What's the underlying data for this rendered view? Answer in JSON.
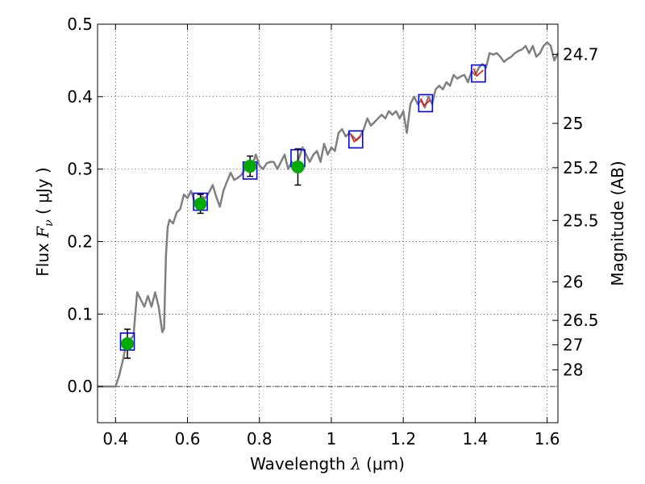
{
  "chart_data": {
    "type": "line",
    "xlabel_text": "Wavelength",
    "xlabel_symbol": "λ",
    "xlabel_unit": "(μm)",
    "ylabel_text": "Flux",
    "ylabel_symbol": "F",
    "ylabel_sub": "ν",
    "ylabel_unit": "( μJy )",
    "y2label": "Magnitude (AB)",
    "xlim": [
      0.35,
      1.63
    ],
    "ylim": [
      -0.05,
      0.5
    ],
    "grid": true,
    "x_ticks": [
      {
        "value": 0.4,
        "label": "0.4"
      },
      {
        "value": 0.6,
        "label": "0.6"
      },
      {
        "value": 0.8,
        "label": "0.8"
      },
      {
        "value": 1.0,
        "label": "1"
      },
      {
        "value": 1.2,
        "label": "1.2"
      },
      {
        "value": 1.4,
        "label": "1.4"
      },
      {
        "value": 1.6,
        "label": "1.6"
      }
    ],
    "y_ticks": [
      {
        "value": 0.0,
        "label": "0.0"
      },
      {
        "value": 0.1,
        "label": "0.1"
      },
      {
        "value": 0.2,
        "label": "0.2"
      },
      {
        "value": 0.3,
        "label": "0.3"
      },
      {
        "value": 0.4,
        "label": "0.4"
      },
      {
        "value": 0.5,
        "label": "0.5"
      }
    ],
    "y2_ticks": [
      {
        "mag": 24.7,
        "flux": 0.4584,
        "label": "24.7"
      },
      {
        "mag": 25.0,
        "flux": 0.3631,
        "label": "25"
      },
      {
        "mag": 25.2,
        "flux": 0.302,
        "label": "25.2"
      },
      {
        "mag": 25.5,
        "flux": 0.2291,
        "label": "25.5"
      },
      {
        "mag": 26.0,
        "flux": 0.1445,
        "label": "26"
      },
      {
        "mag": 26.5,
        "flux": 0.0912,
        "label": "26.5"
      },
      {
        "mag": 27.0,
        "flux": 0.0575,
        "label": "27"
      },
      {
        "mag": 28.0,
        "flux": 0.0229,
        "label": "28"
      }
    ],
    "colors": {
      "sed": "#808080",
      "box": "#0000ff",
      "model_mark": "#ff0000",
      "detection": "#00aa00",
      "errorbar": "#000000",
      "zero_line": "#000000"
    },
    "sed_line": {
      "x": [
        0.35,
        0.38,
        0.4,
        0.41,
        0.42,
        0.43,
        0.44,
        0.45,
        0.455,
        0.46,
        0.465,
        0.47,
        0.48,
        0.49,
        0.5,
        0.51,
        0.52,
        0.53,
        0.535,
        0.54,
        0.545,
        0.55,
        0.56,
        0.57,
        0.58,
        0.59,
        0.6,
        0.61,
        0.62,
        0.63,
        0.64,
        0.65,
        0.66,
        0.67,
        0.68,
        0.69,
        0.7,
        0.71,
        0.72,
        0.73,
        0.74,
        0.75,
        0.76,
        0.77,
        0.78,
        0.79,
        0.8,
        0.81,
        0.82,
        0.83,
        0.84,
        0.85,
        0.86,
        0.87,
        0.88,
        0.89,
        0.9,
        0.91,
        0.92,
        0.93,
        0.94,
        0.95,
        0.96,
        0.97,
        0.98,
        0.99,
        1.0,
        1.01,
        1.02,
        1.03,
        1.04,
        1.05,
        1.06,
        1.07,
        1.08,
        1.09,
        1.1,
        1.11,
        1.12,
        1.13,
        1.14,
        1.15,
        1.16,
        1.17,
        1.18,
        1.19,
        1.2,
        1.21,
        1.22,
        1.23,
        1.24,
        1.25,
        1.26,
        1.27,
        1.28,
        1.29,
        1.3,
        1.31,
        1.32,
        1.33,
        1.34,
        1.35,
        1.36,
        1.37,
        1.38,
        1.39,
        1.4,
        1.41,
        1.42,
        1.43,
        1.44,
        1.45,
        1.46,
        1.47,
        1.48,
        1.49,
        1.5,
        1.51,
        1.52,
        1.53,
        1.54,
        1.55,
        1.56,
        1.57,
        1.58,
        1.59,
        1.6,
        1.61,
        1.62,
        1.63
      ],
      "y": [
        0.0,
        0.0,
        0.0,
        0.015,
        0.035,
        0.06,
        0.065,
        0.07,
        0.1,
        0.13,
        0.125,
        0.12,
        0.11,
        0.125,
        0.11,
        0.13,
        0.11,
        0.075,
        0.08,
        0.18,
        0.22,
        0.23,
        0.225,
        0.24,
        0.245,
        0.265,
        0.26,
        0.27,
        0.255,
        0.25,
        0.262,
        0.26,
        0.268,
        0.278,
        0.262,
        0.248,
        0.27,
        0.283,
        0.295,
        0.285,
        0.288,
        0.292,
        0.3,
        0.31,
        0.305,
        0.32,
        0.305,
        0.3,
        0.308,
        0.31,
        0.31,
        0.3,
        0.31,
        0.32,
        0.3,
        0.31,
        0.305,
        0.315,
        0.33,
        0.32,
        0.31,
        0.32,
        0.325,
        0.31,
        0.335,
        0.32,
        0.33,
        0.325,
        0.35,
        0.355,
        0.345,
        0.35,
        0.345,
        0.34,
        0.345,
        0.355,
        0.37,
        0.36,
        0.365,
        0.37,
        0.375,
        0.37,
        0.38,
        0.375,
        0.38,
        0.37,
        0.38,
        0.35,
        0.39,
        0.4,
        0.39,
        0.395,
        0.385,
        0.4,
        0.39,
        0.41,
        0.415,
        0.41,
        0.42,
        0.415,
        0.43,
        0.425,
        0.428,
        0.43,
        0.42,
        0.435,
        0.43,
        0.44,
        0.445,
        0.44,
        0.46,
        0.458,
        0.46,
        0.455,
        0.448,
        0.452,
        0.455,
        0.46,
        0.463,
        0.465,
        0.47,
        0.46,
        0.47,
        0.455,
        0.46,
        0.47,
        0.475,
        0.47,
        0.45,
        0.46
      ]
    },
    "model_boxes": {
      "x": [
        0.433,
        0.636,
        0.774,
        0.907,
        1.068,
        1.262,
        1.409
      ],
      "y": [
        0.062,
        0.255,
        0.298,
        0.315,
        0.341,
        0.391,
        0.432
      ]
    },
    "model_marks": {
      "x": [
        1.068,
        1.262,
        1.409
      ],
      "y": [
        0.341,
        0.391,
        0.432
      ]
    },
    "detections": {
      "x": [
        0.433,
        0.636,
        0.774,
        0.907
      ],
      "y": [
        0.059,
        0.252,
        0.304,
        0.303
      ],
      "yerr": [
        0.02,
        0.013,
        0.014,
        0.025
      ]
    }
  }
}
